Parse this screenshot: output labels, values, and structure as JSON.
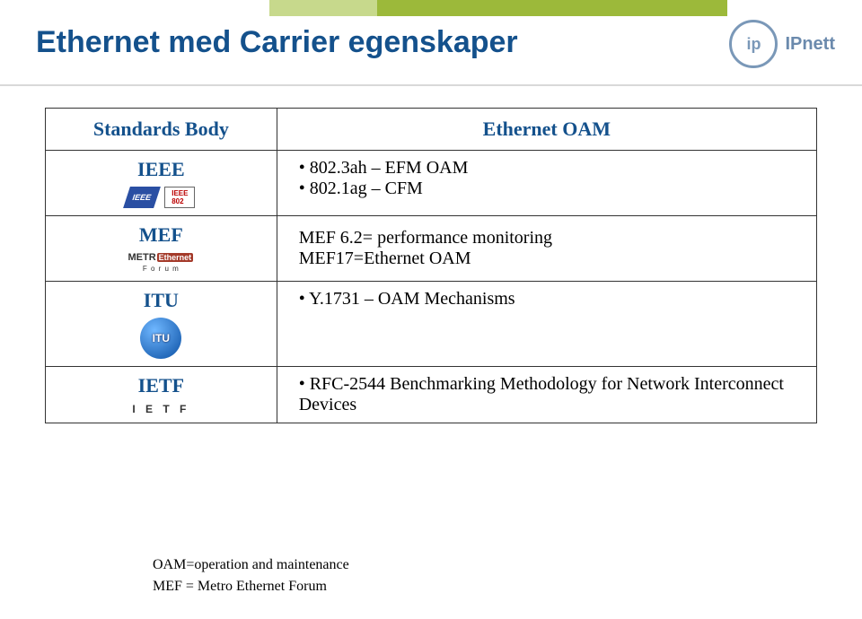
{
  "title": "Ethernet med Carrier egenskaper",
  "brand": {
    "mark": "ip",
    "name": "IPnett"
  },
  "stripe_colors": {
    "main": "#9cb93a",
    "light": "#c7d98c"
  },
  "table": {
    "header": {
      "col1": "Standards Body",
      "col2": "Ethernet OAM"
    },
    "rows": [
      {
        "body": "IEEE",
        "logos": [
          "IEEE",
          "IEEE 802"
        ],
        "items": [
          "802.3ah – EFM OAM",
          "802.1ag – CFM"
        ]
      },
      {
        "body": "MEF",
        "logos": [
          "METRO Ethernet Forum"
        ],
        "lines": [
          "MEF 6.2= performance monitoring",
          "MEF17=Ethernet OAM"
        ]
      },
      {
        "body": "ITU",
        "logos": [
          "ITU"
        ],
        "items": [
          "Y.1731 – OAM Mechanisms"
        ]
      },
      {
        "body": "IETF",
        "logos": [
          "I E T F"
        ],
        "items": [
          "RFC-2544 Benchmarking Methodology for Network Interconnect Devices"
        ]
      }
    ]
  },
  "footnotes": [
    "OAM=operation and maintenance",
    "MEF = Metro Ethernet Forum"
  ]
}
